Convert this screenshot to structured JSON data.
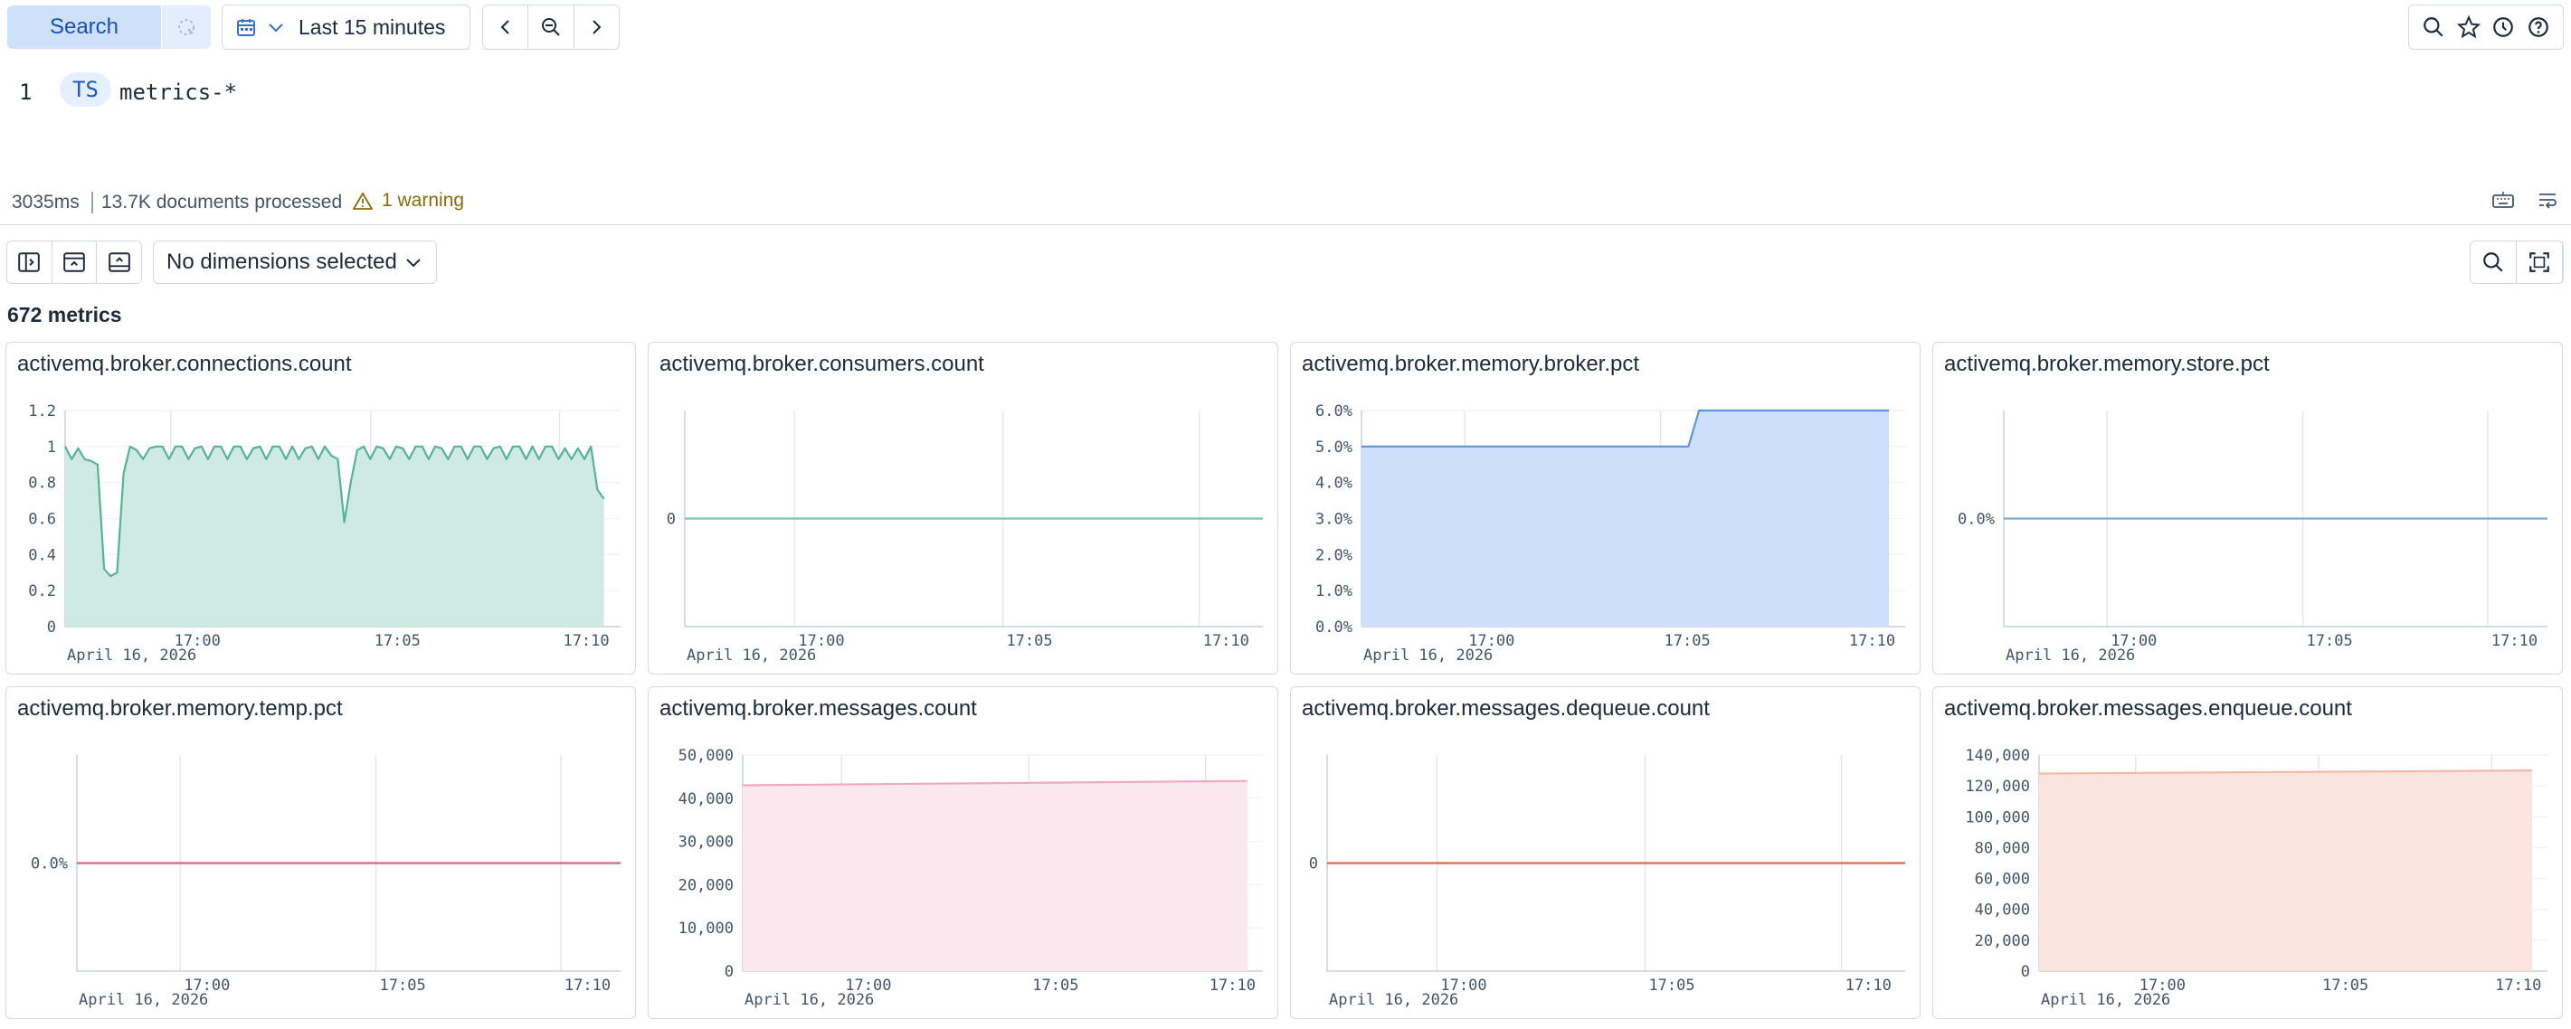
{
  "topbar": {
    "search_label": "Search",
    "date_range": "Last 15 minutes"
  },
  "editor": {
    "line_number": "1",
    "keyword": "TS",
    "query": "metrics-*"
  },
  "status": {
    "duration": "3035ms",
    "documents": "13.7K documents processed",
    "warning": "1 warning"
  },
  "toolbar": {
    "dimensions_label": "No dimensions selected"
  },
  "metrics_count": "672 metrics",
  "chart_data": [
    {
      "type": "area",
      "title": "activemq.broker.connections.count",
      "color": "#54B399",
      "fill": "#cfeae3",
      "ylim": [
        0,
        1.2
      ],
      "yticks": [
        "0",
        "0.2",
        "0.4",
        "0.6",
        "0.8",
        "1",
        "1.2"
      ],
      "xticks": [
        "17:00",
        "17:05",
        "17:10"
      ],
      "date_label": "April 16, 2026",
      "values": [
        1.0,
        0.93,
        0.99,
        0.93,
        0.92,
        0.9,
        0.32,
        0.28,
        0.3,
        0.85,
        1.0,
        0.98,
        0.93,
        0.99,
        1.0,
        1.0,
        0.93,
        1.0,
        1.0,
        0.93,
        0.99,
        1.0,
        0.93,
        1.0,
        1.0,
        0.93,
        1.0,
        1.0,
        0.93,
        0.99,
        1.0,
        0.93,
        1.0,
        1.0,
        0.93,
        1.0,
        0.93,
        0.99,
        1.0,
        0.93,
        1.0,
        0.95,
        0.93,
        0.58,
        0.8,
        0.98,
        1.0,
        0.93,
        1.0,
        0.99,
        0.93,
        1.0,
        0.99,
        0.93,
        1.0,
        1.0,
        0.93,
        1.0,
        0.99,
        0.93,
        1.0,
        1.0,
        0.93,
        1.0,
        1.0,
        0.93,
        0.99,
        1.0,
        0.93,
        1.0,
        1.0,
        0.93,
        1.0,
        0.93,
        1.0,
        1.0,
        0.93,
        0.99,
        0.93,
        0.99,
        0.93,
        1.0,
        0.76,
        0.71
      ]
    },
    {
      "type": "line",
      "title": "activemq.broker.consumers.count",
      "color": "#6dccb1",
      "fill": "",
      "ylim": [
        -1,
        1
      ],
      "yticks": [
        "0"
      ],
      "ytick_values": [
        0
      ],
      "xticks": [
        "17:00",
        "17:05",
        "17:10"
      ],
      "date_label": "April 16, 2026",
      "values": [
        0,
        0
      ]
    },
    {
      "type": "area",
      "title": "activemq.broker.memory.broker.pct",
      "color": "#6092e6",
      "fill": "#cddffa",
      "ylim": [
        0,
        6
      ],
      "yticks": [
        "0.0%",
        "1.0%",
        "2.0%",
        "3.0%",
        "4.0%",
        "5.0%",
        "6.0%"
      ],
      "xticks": [
        "17:00",
        "17:05",
        "17:10"
      ],
      "date_label": "April 16, 2026",
      "step_values": [
        [
          0,
          5
        ],
        [
          0.62,
          5
        ],
        [
          0.64,
          6
        ],
        [
          1,
          6
        ]
      ]
    },
    {
      "type": "line",
      "title": "activemq.broker.memory.store.pct",
      "color": "#79aad9",
      "fill": "",
      "ylim": [
        -1,
        1
      ],
      "yticks": [
        "0.0%"
      ],
      "ytick_values": [
        0
      ],
      "xticks": [
        "17:00",
        "17:05",
        "17:10"
      ],
      "date_label": "April 16, 2026",
      "values": [
        0,
        0
      ]
    },
    {
      "type": "line",
      "title": "activemq.broker.memory.temp.pct",
      "color": "#e15d92",
      "fill": "",
      "ylim": [
        -1,
        1
      ],
      "yticks": [
        "0.0%"
      ],
      "ytick_values": [
        0
      ],
      "xticks": [
        "17:00",
        "17:05",
        "17:10"
      ],
      "date_label": "April 16, 2026",
      "values": [
        0,
        0
      ]
    },
    {
      "type": "area",
      "title": "activemq.broker.messages.count",
      "color": "#f0a9be",
      "fill": "#fbe8ee",
      "ylim": [
        0,
        50000
      ],
      "yticks": [
        "0",
        "10,000",
        "20,000",
        "30,000",
        "40,000",
        "50,000"
      ],
      "xticks": [
        "17:00",
        "17:05",
        "17:10"
      ],
      "date_label": "April 16, 2026",
      "values": [
        43000,
        43500,
        44000
      ]
    },
    {
      "type": "line",
      "title": "activemq.broker.messages.dequeue.count",
      "color": "#e7664c",
      "fill": "",
      "ylim": [
        -1,
        1
      ],
      "yticks": [
        "0"
      ],
      "ytick_values": [
        0
      ],
      "xticks": [
        "17:00",
        "17:05",
        "17:10"
      ],
      "date_label": "April 16, 2026",
      "values": [
        0,
        0
      ]
    },
    {
      "type": "area",
      "title": "activemq.broker.messages.enqueue.count",
      "color": "#f3b7a6",
      "fill": "#fbe4dd",
      "ylim": [
        0,
        140000
      ],
      "yticks": [
        "0",
        "20,000",
        "40,000",
        "60,000",
        "80,000",
        "100,000",
        "120,000",
        "140,000"
      ],
      "xticks": [
        "17:00",
        "17:05",
        "17:10"
      ],
      "date_label": "April 16, 2026",
      "values": [
        128000,
        129000,
        130000
      ]
    }
  ]
}
